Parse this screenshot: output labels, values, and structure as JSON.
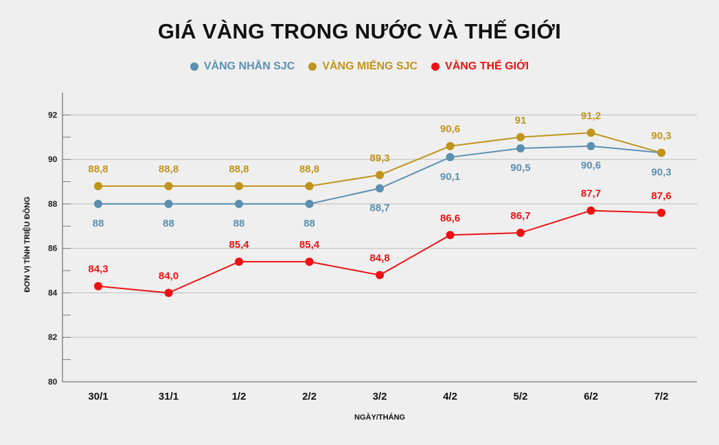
{
  "chart_data": {
    "type": "line",
    "title": "GIÁ VÀNG TRONG NƯỚC VÀ THẾ GIỚI",
    "xlabel": "NGÀY/THÁNG",
    "ylabel": "ĐƠN VỊ TÍNH TRIỆU ĐỒNG",
    "categories": [
      "30/1",
      "31/1",
      "1/2",
      "2/2",
      "3/2",
      "4/2",
      "5/2",
      "6/2",
      "7/2"
    ],
    "ylim": [
      80,
      93
    ],
    "yticks": [
      80,
      82,
      84,
      86,
      88,
      90,
      92
    ],
    "grid": true,
    "legend_position": "top-center",
    "series": [
      {
        "name": "VÀNG NHẪN SJC",
        "color": "#5b8fb0",
        "values": [
          88,
          88,
          88,
          88,
          88.7,
          90.1,
          90.5,
          90.6,
          90.3
        ],
        "labels": [
          "88",
          "88",
          "88",
          "88",
          "88,7",
          "90,1",
          "90,5",
          "90,6",
          "90,3"
        ],
        "label_position": "below"
      },
      {
        "name": "VÀNG MIẾNG SJC",
        "color": "#c0941b",
        "values": [
          88.8,
          88.8,
          88.8,
          88.8,
          89.3,
          90.6,
          91,
          91.2,
          90.3
        ],
        "labels": [
          "88,8",
          "88,8",
          "88,8",
          "88,8",
          "89,3",
          "90,6",
          "91",
          "91,2",
          "90,3"
        ],
        "label_position": "above"
      },
      {
        "name": "VÀNG THẾ GIỚI",
        "color": "#ee1111",
        "values": [
          84.3,
          84.0,
          85.4,
          85.4,
          84.8,
          86.6,
          86.7,
          87.7,
          87.6
        ],
        "labels": [
          "84,3",
          "84,0",
          "85,4",
          "85,4",
          "84,8",
          "86,6",
          "86,7",
          "87,7",
          "87,6"
        ],
        "label_position": "above"
      }
    ]
  }
}
